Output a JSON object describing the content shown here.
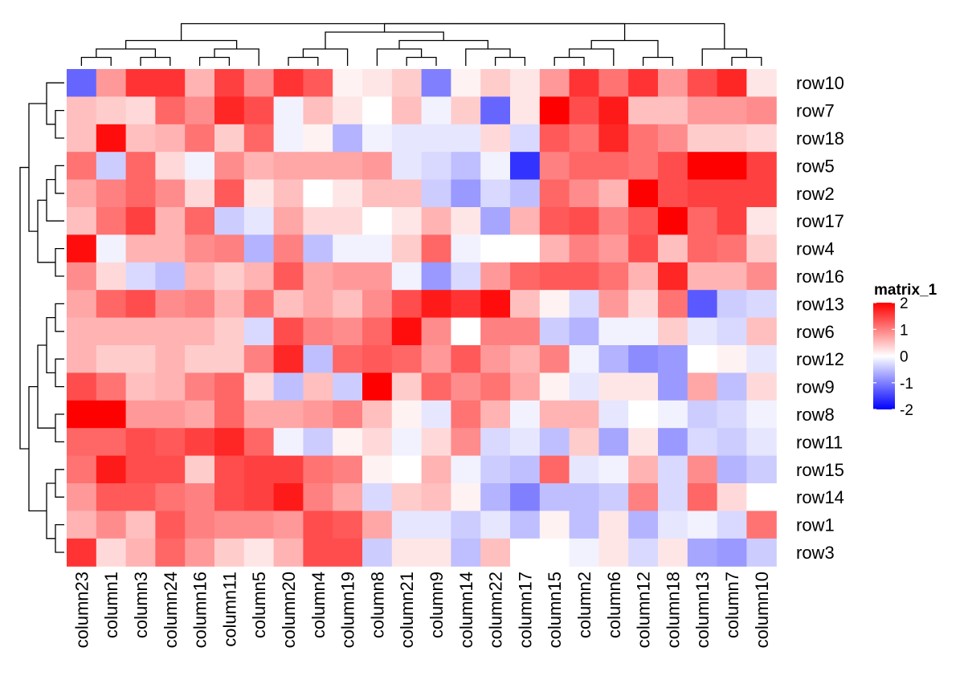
{
  "chart_data": {
    "type": "heatmap",
    "title": "",
    "rows": [
      "row10",
      "row7",
      "row18",
      "row5",
      "row2",
      "row17",
      "row4",
      "row16",
      "row13",
      "row6",
      "row12",
      "row9",
      "row8",
      "row11",
      "row15",
      "row14",
      "row1",
      "row3"
    ],
    "columns": [
      "column23",
      "column1",
      "column3",
      "column24",
      "column16",
      "column11",
      "column5",
      "column20",
      "column4",
      "column19",
      "column8",
      "column21",
      "column9",
      "column14",
      "column22",
      "column17",
      "column15",
      "column2",
      "column6",
      "column12",
      "column18",
      "column13",
      "column7",
      "column10"
    ],
    "values": [
      [
        -1.2,
        0.8,
        1.6,
        1.6,
        0.6,
        1.5,
        0.9,
        1.6,
        1.3,
        0.1,
        0.2,
        0.4,
        -1.0,
        0.1,
        0.4,
        0.2,
        0.8,
        1.6,
        1.1,
        1.6,
        0.8,
        1.4,
        1.7,
        0.2
      ],
      [
        0.5,
        0.4,
        0.3,
        1.2,
        0.9,
        1.7,
        1.4,
        -0.1,
        0.5,
        0.2,
        0.0,
        0.5,
        -0.1,
        0.4,
        -1.2,
        0.2,
        2.0,
        1.4,
        1.8,
        0.5,
        0.5,
        0.8,
        0.8,
        0.9
      ],
      [
        0.5,
        1.9,
        0.5,
        0.6,
        1.1,
        0.4,
        1.2,
        -0.1,
        0.1,
        -0.6,
        -0.1,
        -0.2,
        -0.2,
        -0.2,
        0.3,
        -0.3,
        1.3,
        1.1,
        1.7,
        1.1,
        0.9,
        0.4,
        0.4,
        0.3
      ],
      [
        1.1,
        -0.4,
        1.2,
        0.3,
        -0.1,
        0.9,
        0.6,
        0.7,
        0.7,
        0.7,
        0.8,
        -0.2,
        -0.3,
        -0.5,
        -0.1,
        -1.6,
        1.0,
        1.2,
        1.2,
        1.1,
        1.4,
        2.0,
        2.0,
        1.5
      ],
      [
        0.7,
        1.0,
        1.2,
        0.9,
        0.3,
        1.3,
        0.2,
        0.5,
        0.0,
        0.2,
        0.5,
        0.5,
        -0.4,
        -0.8,
        -0.3,
        -0.5,
        1.2,
        0.9,
        0.6,
        2.0,
        1.4,
        1.5,
        1.5,
        1.5
      ],
      [
        0.5,
        1.1,
        1.5,
        0.6,
        1.2,
        -0.4,
        -0.2,
        0.7,
        0.3,
        0.3,
        0.0,
        0.2,
        0.6,
        0.2,
        -0.7,
        0.6,
        1.3,
        1.4,
        1.0,
        1.3,
        2.0,
        1.2,
        1.5,
        0.2
      ],
      [
        1.9,
        -0.1,
        0.6,
        0.6,
        0.9,
        1.0,
        -0.6,
        1.0,
        -0.5,
        -0.1,
        -0.1,
        0.4,
        1.2,
        -0.1,
        0.0,
        0.0,
        0.6,
        1.0,
        0.8,
        1.4,
        0.5,
        1.2,
        1.1,
        0.4
      ],
      [
        0.9,
        0.3,
        -0.3,
        -0.5,
        0.6,
        0.4,
        0.6,
        1.3,
        0.7,
        0.8,
        0.8,
        -0.1,
        -0.8,
        -0.3,
        0.8,
        1.2,
        1.3,
        1.3,
        1.1,
        0.6,
        1.7,
        0.6,
        0.6,
        0.9
      ],
      [
        0.7,
        1.2,
        1.4,
        0.9,
        1.0,
        0.6,
        1.1,
        0.5,
        0.7,
        0.5,
        0.9,
        1.4,
        1.8,
        1.6,
        1.9,
        0.5,
        0.1,
        -0.3,
        0.8,
        0.3,
        1.1,
        -1.3,
        -0.4,
        -0.3
      ],
      [
        0.6,
        0.6,
        0.6,
        0.6,
        0.6,
        0.4,
        -0.3,
        1.4,
        1.0,
        0.9,
        1.2,
        1.9,
        0.9,
        -0.0,
        1.0,
        1.0,
        -0.4,
        -0.6,
        -0.1,
        -0.1,
        0.4,
        -0.2,
        -0.3,
        0.5
      ],
      [
        0.6,
        0.4,
        0.4,
        0.6,
        0.4,
        0.4,
        1.0,
        1.7,
        -0.5,
        1.2,
        1.3,
        1.2,
        0.8,
        1.3,
        0.8,
        0.6,
        1.0,
        -0.1,
        -0.6,
        -0.9,
        -0.8,
        0.0,
        0.1,
        -0.2
      ],
      [
        1.4,
        1.1,
        0.5,
        0.6,
        1.0,
        1.2,
        0.3,
        -0.5,
        0.5,
        -0.4,
        2.0,
        0.4,
        1.2,
        0.9,
        1.1,
        0.7,
        0.1,
        -0.2,
        0.2,
        0.2,
        -0.8,
        0.7,
        -0.5,
        0.3
      ],
      [
        2.0,
        2.0,
        0.8,
        0.8,
        0.7,
        1.2,
        0.7,
        0.7,
        0.8,
        1.0,
        0.5,
        0.1,
        -0.2,
        1.1,
        0.6,
        -0.1,
        0.6,
        0.6,
        -0.2,
        0.0,
        -0.1,
        -0.4,
        -0.3,
        -0.1
      ],
      [
        1.2,
        1.2,
        1.4,
        1.3,
        1.5,
        1.7,
        1.2,
        -0.1,
        -0.4,
        0.1,
        0.3,
        -0.1,
        0.3,
        0.9,
        -0.3,
        -0.2,
        -0.5,
        0.4,
        -0.7,
        0.2,
        -0.8,
        -0.3,
        -0.4,
        -0.2
      ],
      [
        1.1,
        1.8,
        1.4,
        1.4,
        0.4,
        1.4,
        1.5,
        1.5,
        1.1,
        1.0,
        0.1,
        0.0,
        0.6,
        -0.1,
        -0.4,
        -0.5,
        1.2,
        -0.2,
        -0.1,
        0.6,
        -0.3,
        0.9,
        -0.6,
        -0.4
      ],
      [
        0.8,
        1.3,
        1.3,
        1.1,
        1.0,
        1.4,
        1.5,
        1.8,
        1.0,
        0.7,
        -0.3,
        0.4,
        0.5,
        0.1,
        -0.6,
        -1.0,
        -0.5,
        -0.5,
        -0.4,
        1.0,
        -0.3,
        1.2,
        0.3,
        -0.0
      ],
      [
        0.6,
        0.9,
        0.5,
        1.3,
        1.0,
        0.9,
        0.9,
        0.8,
        1.4,
        1.3,
        0.7,
        -0.2,
        -0.2,
        -0.4,
        -0.2,
        -0.5,
        0.1,
        -0.5,
        0.2,
        -0.6,
        -0.2,
        -0.1,
        -0.3,
        1.1
      ],
      [
        1.6,
        0.3,
        0.6,
        1.2,
        0.8,
        0.4,
        0.2,
        0.6,
        1.4,
        1.4,
        -0.4,
        0.2,
        0.2,
        -0.5,
        0.5,
        -0.0,
        -0.0,
        -0.1,
        0.2,
        -0.3,
        0.2,
        -0.7,
        -0.8,
        -0.4
      ]
    ],
    "legend": {
      "title": "matrix_1",
      "ticks": [
        "2",
        "1",
        "0",
        "-1",
        "-2"
      ],
      "tick_values": [
        2,
        1,
        0,
        -1,
        -2
      ],
      "range": [
        -2,
        2
      ]
    },
    "colors": {
      "low": "#0000ff",
      "mid": "#ffffff",
      "high": "#ff0000",
      "line": "#000000"
    },
    "row_dendrogram": "[[[row10,[row7,row18]],[[[row5,row2],row17],[row4,row16]]],[[[[row13,row6],[row12,row9]],[row8,row11]],[[row15,row14],[row1,row3]]]]",
    "column_dendrogram": "[[[[column23,column1],[column3,column24]],[[column16,column11],column5]],[[[column20,column4],column19],[[column8,[column21,column9]],[column14,[column22,column17]]]],[[[column15,column2],column6],[column12,column18]],[column13,[column7,column10]]]"
  }
}
